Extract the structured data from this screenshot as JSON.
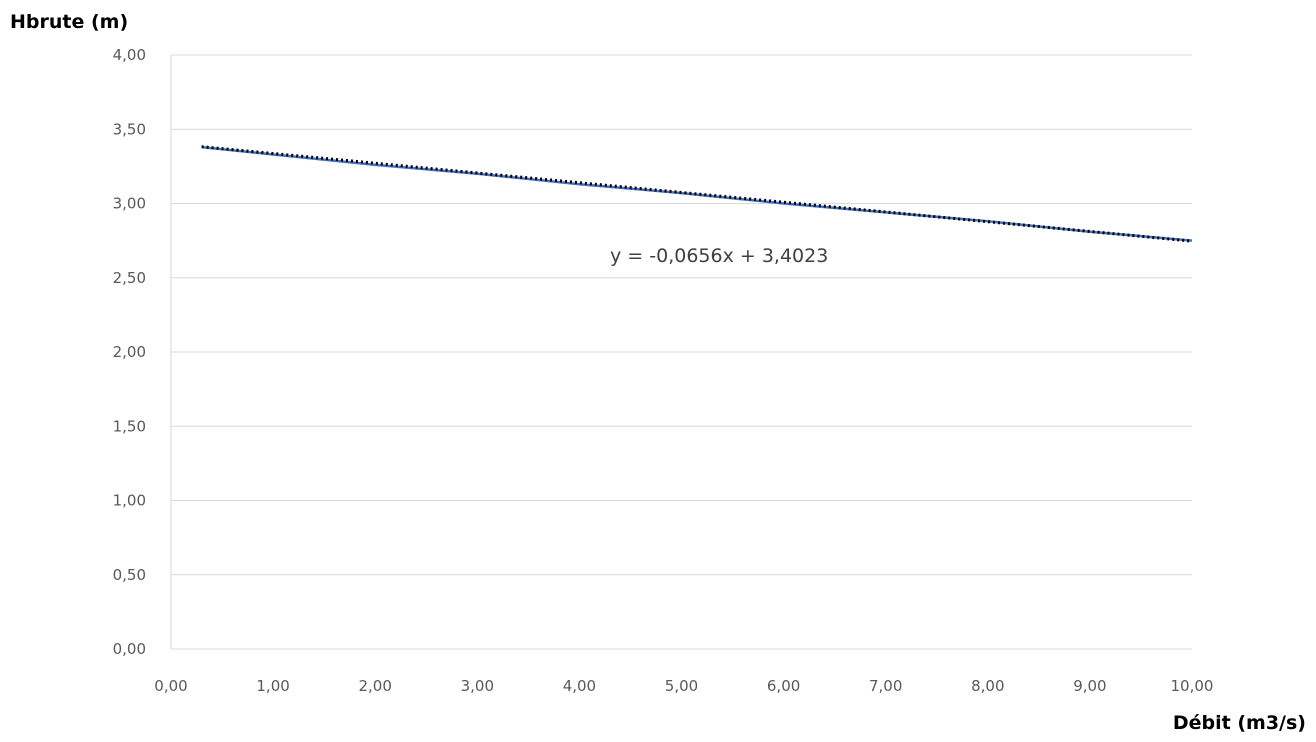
{
  "chart_data": {
    "type": "line",
    "ylabel": "Hbrute (m)",
    "xlabel": "Débit (m3/s)",
    "xlim": [
      0,
      10
    ],
    "ylim": [
      0,
      4
    ],
    "x_ticks": [
      "0,00",
      "1,00",
      "2,00",
      "3,00",
      "4,00",
      "5,00",
      "6,00",
      "7,00",
      "8,00",
      "9,00",
      "10,00"
    ],
    "y_ticks": [
      "0,00",
      "0,50",
      "1,00",
      "1,50",
      "2,00",
      "2,50",
      "3,00",
      "3,50",
      "4,00"
    ],
    "grid": true,
    "series": [
      {
        "color": "#4472c4",
        "style": "solid",
        "x": [
          0.3,
          1,
          2,
          3,
          4,
          5,
          6,
          7,
          8,
          9,
          10
        ],
        "y": [
          3.38,
          3.33,
          3.26,
          3.2,
          3.13,
          3.07,
          3.0,
          2.94,
          2.88,
          2.81,
          2.75
        ]
      }
    ],
    "trendline": {
      "type": "linear",
      "color": "#000000",
      "style": "dotted",
      "slope": -0.0656,
      "intercept": 3.4023,
      "x_range": [
        0.3,
        10
      ],
      "equation_label": "y = -0,0656x + 3,4023"
    }
  }
}
